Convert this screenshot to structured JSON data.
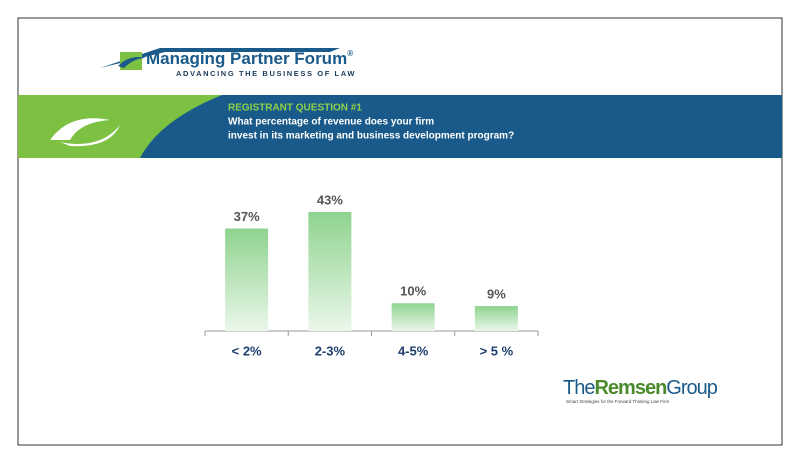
{
  "slide": {
    "logo_title": "Managing Partner Forum",
    "logo_mark": "®",
    "logo_tagline": "ADVANCING THE BUSINESS OF LAW",
    "question_heading": "REGISTRANT QUESTION #1",
    "question_lines": [
      "What percentage of revenue does your firm",
      "invest in its marketing and business development program?"
    ],
    "brand_parts": [
      "The",
      "Remsen",
      "Group"
    ],
    "brand_tagline": "Smart Strategies for the Forward Thinking Law Firm"
  },
  "chart_data": {
    "type": "bar",
    "categories": [
      "< 2%",
      "2-3%",
      "4-5%",
      "> 5 %"
    ],
    "values": [
      37,
      43,
      10,
      9
    ],
    "value_labels": [
      "37%",
      "43%",
      "10%",
      "9%"
    ],
    "color": "#8fd38f"
  }
}
